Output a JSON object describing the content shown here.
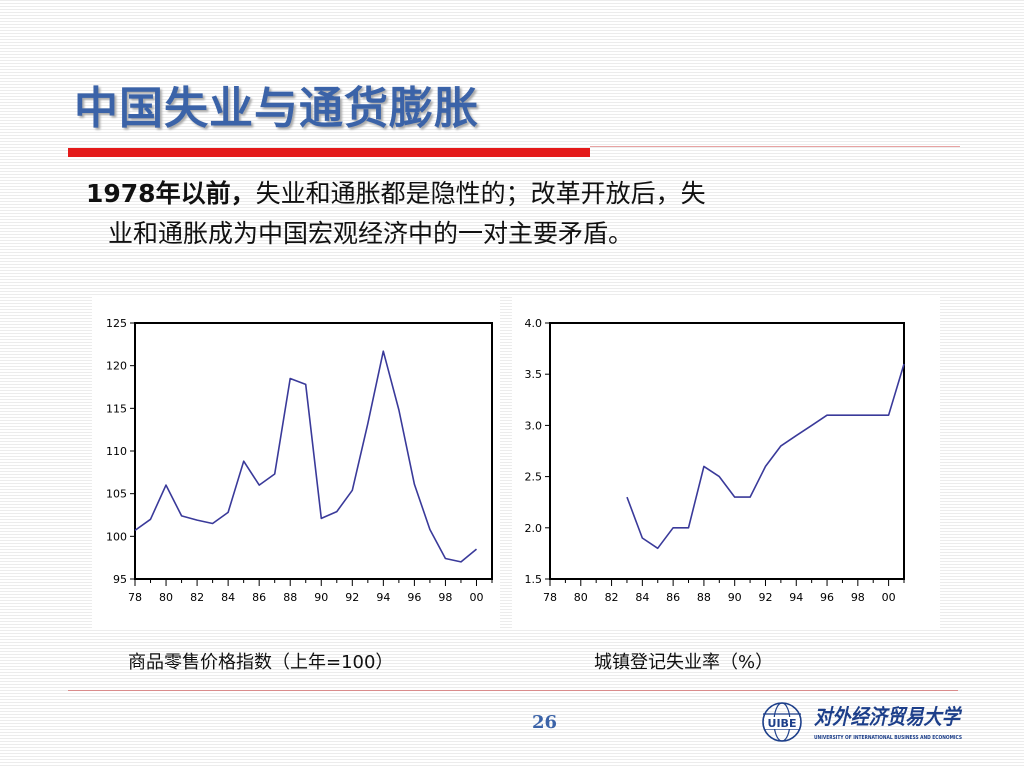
{
  "slide": {
    "title": "中国失业与通货膨胀",
    "body_lead": "1978年以前，",
    "body_line1_rest": "失业和通胀都是隐性的；改革开放后，失",
    "body_line2": "业和通胀成为中国宏观经济中的一对主要矛盾。",
    "page_number": "26"
  },
  "captions": {
    "left": "商品零售价格指数（上年=100）",
    "right": "城镇登记失业率（%）"
  },
  "logo": {
    "emblem_text": "UIBE",
    "name_cn": "对外经济贸易大学",
    "name_en": "UNIVERSITY OF INTERNATIONAL BUSINESS AND ECONOMICS"
  },
  "colors": {
    "title": "#3b63a8",
    "accent_red": "#e41a1a",
    "series_line": "#3a3a9a"
  },
  "chart_data": [
    {
      "type": "line",
      "title": "",
      "xlabel": "",
      "ylabel": "",
      "xlim": [
        1978,
        2001
      ],
      "ylim": [
        95,
        125
      ],
      "yticks": [
        95,
        100,
        105,
        110,
        115,
        120,
        125
      ],
      "ytick_labels": [
        "95",
        "100",
        "105",
        "110",
        "115",
        "120",
        "125"
      ],
      "xticks": [
        1978,
        1980,
        1982,
        1984,
        1986,
        1988,
        1990,
        1992,
        1994,
        1996,
        1998,
        2000
      ],
      "xtick_labels": [
        "78",
        "80",
        "82",
        "84",
        "86",
        "88",
        "90",
        "92",
        "94",
        "96",
        "98",
        "00"
      ],
      "series": [
        {
          "x": [
            1978,
            1979,
            1980,
            1981,
            1982,
            1983,
            1984,
            1985,
            1986,
            1987,
            1988,
            1989,
            1990,
            1991,
            1992,
            1993,
            1994,
            1995,
            1996,
            1997,
            1998,
            1999,
            2000
          ],
          "values": [
            100.7,
            102.0,
            106.0,
            102.4,
            101.9,
            101.5,
            102.8,
            108.8,
            106.0,
            107.3,
            118.5,
            117.8,
            102.1,
            102.9,
            105.4,
            113.2,
            121.7,
            114.8,
            106.1,
            100.8,
            97.4,
            97.0,
            98.5
          ]
        }
      ]
    },
    {
      "type": "line",
      "title": "",
      "xlabel": "",
      "ylabel": "",
      "xlim": [
        1978,
        2001
      ],
      "ylim": [
        1.5,
        4.0
      ],
      "yticks": [
        1.5,
        2.0,
        2.5,
        3.0,
        3.5,
        4.0
      ],
      "ytick_labels": [
        "1.5",
        "2.0",
        "2.5",
        "3.0",
        "3.5",
        "4.0"
      ],
      "xticks": [
        1978,
        1980,
        1982,
        1984,
        1986,
        1988,
        1990,
        1992,
        1994,
        1996,
        1998,
        2000
      ],
      "xtick_labels": [
        "78",
        "80",
        "82",
        "84",
        "86",
        "88",
        "90",
        "92",
        "94",
        "96",
        "98",
        "00"
      ],
      "series": [
        {
          "x": [
            1983,
            1984,
            1985,
            1986,
            1987,
            1988,
            1989,
            1990,
            1991,
            1992,
            1993,
            1994,
            1995,
            1996,
            1997,
            1998,
            1999,
            2000,
            2001
          ],
          "values": [
            2.3,
            1.9,
            1.8,
            2.0,
            2.0,
            2.6,
            2.5,
            2.3,
            2.3,
            2.6,
            2.8,
            2.9,
            3.0,
            3.1,
            3.1,
            3.1,
            3.1,
            3.1,
            3.6
          ]
        }
      ]
    }
  ]
}
